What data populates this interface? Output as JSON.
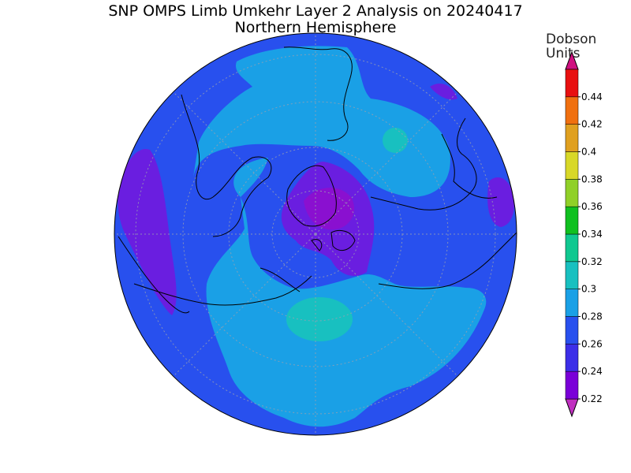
{
  "title": "SNP OMPS Limb Umkehr Layer 2 Analysis on 20240417",
  "subtitle": "Northern Hemisphere",
  "colorbar": {
    "unit_line1": "Dobson",
    "unit_line2": "Units",
    "levels": [
      {
        "label": "0.22",
        "color": "#7a00d8"
      },
      {
        "label": "0.24",
        "color": "#3c2ee8"
      },
      {
        "label": "0.26",
        "color": "#2850ee"
      },
      {
        "label": "0.28",
        "color": "#1aa0e6"
      },
      {
        "label": "0.3",
        "color": "#18c0c0"
      },
      {
        "label": "0.32",
        "color": "#10c890"
      },
      {
        "label": "0.34",
        "color": "#10c020"
      },
      {
        "label": "0.36",
        "color": "#90d028"
      },
      {
        "label": "0.38",
        "color": "#d8d828"
      },
      {
        "label": "0.4",
        "color": "#e0a020"
      },
      {
        "label": "0.42",
        "color": "#f07010"
      },
      {
        "label": "0.44",
        "color": "#e81010"
      }
    ],
    "min_cap_color": "#c030c0",
    "max_cap_color": "#d01080"
  },
  "map": {
    "projection": "north polar stereographic",
    "background_level_color": "#2850ee"
  }
}
